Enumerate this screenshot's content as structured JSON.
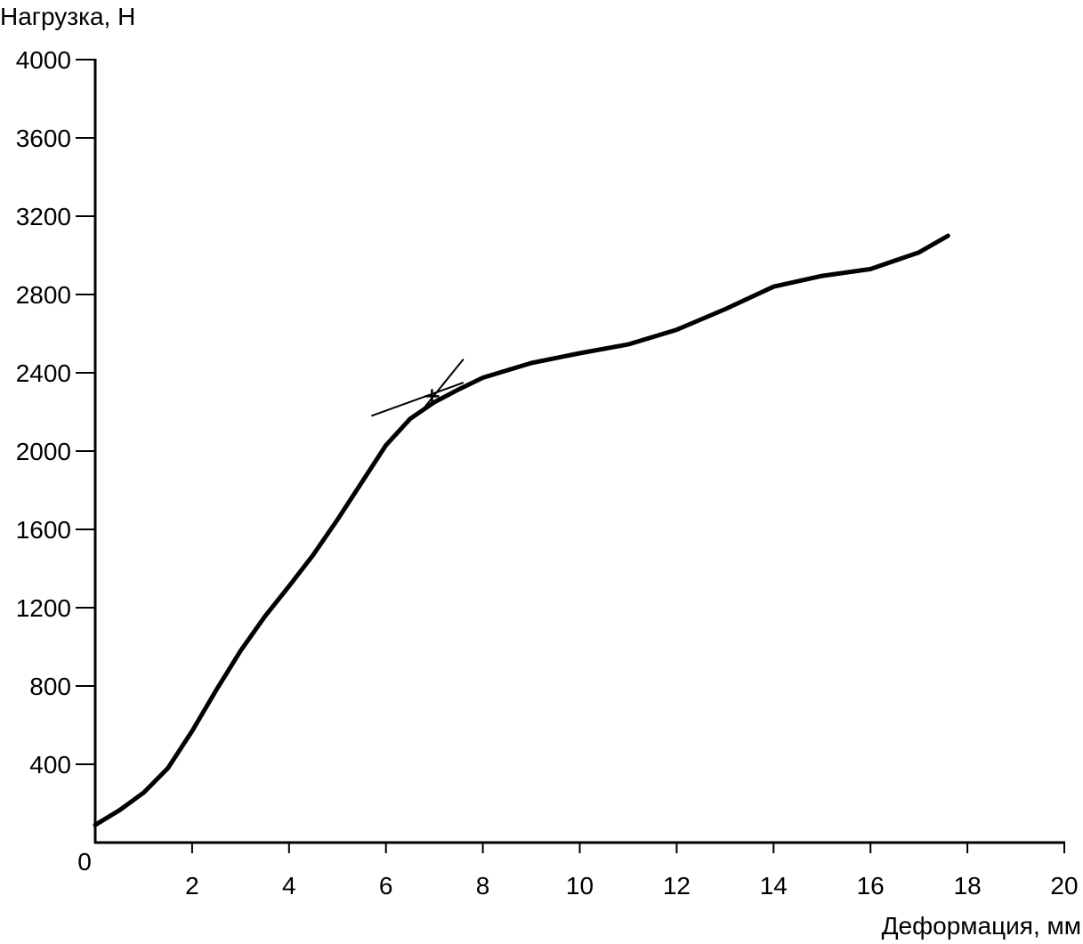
{
  "chart_data": {
    "type": "line",
    "ylabel": "Нагрузка, Н",
    "xlabel": "Деформация, мм",
    "xlim": [
      0,
      20
    ],
    "ylim": [
      0,
      4000
    ],
    "xticks": [
      0,
      2,
      4,
      6,
      8,
      10,
      12,
      14,
      16,
      18,
      20
    ],
    "yticks": [
      400,
      800,
      1200,
      1600,
      2000,
      2400,
      2800,
      3200,
      3600,
      4000
    ],
    "series": [
      {
        "color": "#000000",
        "x": [
          0,
          0.5,
          1,
          1.5,
          2,
          2.5,
          3,
          3.5,
          4,
          4.5,
          5,
          5.5,
          6,
          6.5,
          7,
          7.5,
          8,
          9,
          10,
          11,
          12,
          13,
          14,
          15,
          16,
          17,
          17.6
        ],
        "values": [
          90,
          165,
          255,
          380,
          570,
          780,
          980,
          1155,
          1310,
          1470,
          1650,
          1840,
          2030,
          2165,
          2250,
          2315,
          2375,
          2450,
          2500,
          2545,
          2620,
          2725,
          2840,
          2895,
          2930,
          3015,
          3100
        ]
      }
    ],
    "tangent_lines": [
      {
        "x": [
          5.7,
          7.6
        ],
        "y": [
          2180,
          2350
        ]
      },
      {
        "x": [
          6.8,
          7.6
        ],
        "y": [
          2225,
          2470
        ]
      }
    ],
    "point": {
      "x": 6.95,
      "y": 2280
    }
  }
}
